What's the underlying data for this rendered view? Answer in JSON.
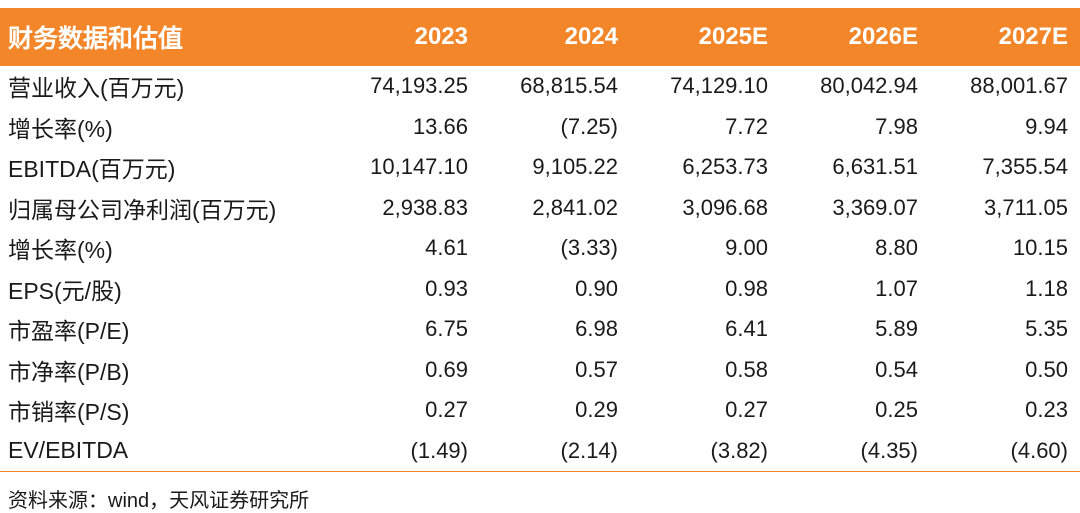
{
  "table": {
    "header": [
      "财务数据和估值",
      "2023",
      "2024",
      "2025E",
      "2026E",
      "2027E"
    ],
    "rows": [
      [
        "营业收入(百万元)",
        "74,193.25",
        "68,815.54",
        "74,129.10",
        "80,042.94",
        "88,001.67"
      ],
      [
        "增长率(%)",
        "13.66",
        "(7.25)",
        "7.72",
        "7.98",
        "9.94"
      ],
      [
        "EBITDA(百万元)",
        "10,147.10",
        "9,105.22",
        "6,253.73",
        "6,631.51",
        "7,355.54"
      ],
      [
        "归属母公司净利润(百万元)",
        "2,938.83",
        "2,841.02",
        "3,096.68",
        "3,369.07",
        "3,711.05"
      ],
      [
        "增长率(%)",
        "4.61",
        "(3.33)",
        "9.00",
        "8.80",
        "10.15"
      ],
      [
        "EPS(元/股)",
        "0.93",
        "0.90",
        "0.98",
        "1.07",
        "1.18"
      ],
      [
        "市盈率(P/E)",
        "6.75",
        "6.98",
        "6.41",
        "5.89",
        "5.35"
      ],
      [
        "市净率(P/B)",
        "0.69",
        "0.57",
        "0.58",
        "0.54",
        "0.50"
      ],
      [
        "市销率(P/S)",
        "0.27",
        "0.29",
        "0.27",
        "0.25",
        "0.23"
      ],
      [
        "EV/EBITDA",
        "(1.49)",
        "(2.14)",
        "(3.82)",
        "(4.35)",
        "(4.60)"
      ]
    ]
  },
  "source": "资料来源：wind，天风证券研究所",
  "colors": {
    "header_bg": "#f4862a",
    "header_text": "#ffffff"
  }
}
